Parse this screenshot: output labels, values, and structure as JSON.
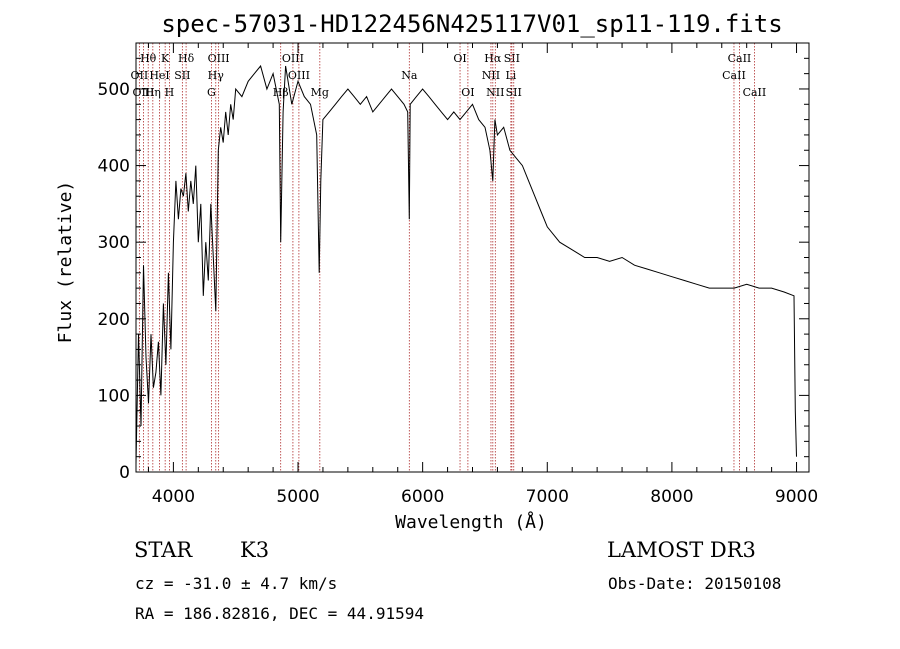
{
  "chart_data": {
    "type": "line",
    "title": "spec-57031-HD122456N425117V01_sp11-119.fits",
    "xlabel": "Wavelength (Å)",
    "ylabel": "Flux (relative)",
    "xlim": [
      3700,
      9100
    ],
    "ylim": [
      0,
      560
    ],
    "xticks": [
      4000,
      5000,
      6000,
      7000,
      8000,
      9000
    ],
    "yticks": [
      0,
      100,
      200,
      300,
      400,
      500
    ],
    "grid": false,
    "series": [
      {
        "name": "flux",
        "x": [
          3700,
          3720,
          3740,
          3760,
          3780,
          3800,
          3820,
          3840,
          3860,
          3880,
          3900,
          3920,
          3940,
          3960,
          3980,
          4000,
          4020,
          4040,
          4060,
          4080,
          4100,
          4120,
          4140,
          4160,
          4180,
          4200,
          4220,
          4240,
          4260,
          4280,
          4300,
          4320,
          4340,
          4360,
          4380,
          4400,
          4420,
          4440,
          4460,
          4480,
          4500,
          4550,
          4600,
          4650,
          4700,
          4750,
          4800,
          4850,
          4861,
          4880,
          4900,
          4950,
          5000,
          5050,
          5100,
          5150,
          5170,
          5183,
          5200,
          5250,
          5300,
          5350,
          5400,
          5450,
          5500,
          5550,
          5600,
          5650,
          5700,
          5750,
          5800,
          5850,
          5880,
          5893,
          5900,
          5950,
          6000,
          6050,
          6100,
          6150,
          6200,
          6250,
          6300,
          6350,
          6400,
          6450,
          6500,
          6540,
          6563,
          6580,
          6600,
          6650,
          6700,
          6750,
          6800,
          6850,
          6900,
          6950,
          7000,
          7100,
          7200,
          7300,
          7400,
          7500,
          7600,
          7700,
          7800,
          7900,
          8000,
          8100,
          8200,
          8300,
          8400,
          8500,
          8600,
          8700,
          8800,
          8900,
          8980,
          8990,
          9000
        ],
        "values": [
          10,
          180,
          60,
          270,
          150,
          90,
          180,
          110,
          130,
          170,
          100,
          220,
          140,
          260,
          160,
          300,
          380,
          330,
          370,
          360,
          390,
          340,
          380,
          350,
          400,
          300,
          350,
          230,
          300,
          250,
          350,
          280,
          210,
          420,
          450,
          430,
          470,
          440,
          480,
          460,
          500,
          490,
          510,
          520,
          530,
          500,
          520,
          480,
          300,
          470,
          530,
          480,
          510,
          490,
          480,
          440,
          260,
          380,
          460,
          470,
          480,
          490,
          500,
          490,
          480,
          490,
          470,
          480,
          490,
          500,
          490,
          480,
          470,
          330,
          480,
          490,
          500,
          490,
          480,
          470,
          460,
          470,
          460,
          470,
          480,
          460,
          450,
          420,
          380,
          460,
          440,
          450,
          420,
          410,
          400,
          380,
          360,
          340,
          320,
          300,
          290,
          280,
          280,
          275,
          280,
          270,
          265,
          260,
          255,
          250,
          245,
          240,
          240,
          240,
          245,
          240,
          240,
          235,
          230,
          80,
          20
        ]
      }
    ],
    "line_markers": [
      {
        "label": "Hθ",
        "wavelength": 3798,
        "row": 1
      },
      {
        "label": "OII",
        "wavelength": 3727,
        "row": 2
      },
      {
        "label": "OIII",
        "wavelength": 3760,
        "row": 3
      },
      {
        "label": "K",
        "wavelength": 3934,
        "row": 1
      },
      {
        "label": "HeI",
        "wavelength": 3889,
        "row": 2
      },
      {
        "label": "Hη",
        "wavelength": 3835,
        "row": 3
      },
      {
        "label": "Hδ",
        "wavelength": 4102,
        "row": 1
      },
      {
        "label": "SII",
        "wavelength": 4072,
        "row": 2
      },
      {
        "label": "H",
        "wavelength": 3968,
        "row": 3
      },
      {
        "label": "OIII",
        "wavelength": 4363,
        "row": 1
      },
      {
        "label": "Hγ",
        "wavelength": 4340,
        "row": 2
      },
      {
        "label": "G",
        "wavelength": 4305,
        "row": 3
      },
      {
        "label": "OIII",
        "wavelength": 4959,
        "row": 1
      },
      {
        "label": "OIII",
        "wavelength": 5007,
        "row": 2
      },
      {
        "label": "Hβ",
        "wavelength": 4861,
        "row": 3
      },
      {
        "label": "Mg",
        "wavelength": 5175,
        "row": 3
      },
      {
        "label": "Na",
        "wavelength": 5893,
        "row": 2
      },
      {
        "label": "OI",
        "wavelength": 6300,
        "row": 1
      },
      {
        "label": "OI",
        "wavelength": 6363,
        "row": 3
      },
      {
        "label": "Hα",
        "wavelength": 6563,
        "row": 1
      },
      {
        "label": "SII",
        "wavelength": 6716,
        "row": 1
      },
      {
        "label": "NII",
        "wavelength": 6548,
        "row": 2
      },
      {
        "label": "Li",
        "wavelength": 6708,
        "row": 2
      },
      {
        "label": "NII",
        "wavelength": 6583,
        "row": 3
      },
      {
        "label": "SII",
        "wavelength": 6731,
        "row": 3
      },
      {
        "label": "CaII",
        "wavelength": 8542,
        "row": 1
      },
      {
        "label": "CaII",
        "wavelength": 8498,
        "row": 2
      },
      {
        "label": "CaII",
        "wavelength": 8662,
        "row": 3
      }
    ]
  },
  "info": {
    "object_class": "STAR",
    "subclass": "K3",
    "survey": "LAMOST DR3",
    "redshift": "cz = -31.0 ± 4.7 km/s",
    "obs_date": "Obs-Date: 20150108",
    "coords": "RA = 186.82816, DEC =  44.91594"
  }
}
